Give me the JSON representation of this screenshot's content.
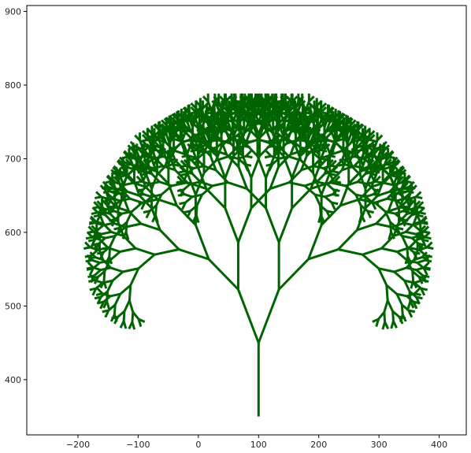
{
  "chart_data": {
    "type": "line",
    "description_kind": "fractal-tree",
    "generator": {
      "trunk_base": [
        100,
        350
      ],
      "trunk_length": 100,
      "branch_angle_deg": 25,
      "length_ratio": 0.8,
      "depth": 10
    },
    "series": [
      {
        "style": "branches",
        "color": "#006400"
      }
    ],
    "xlim": [
      -285,
      445
    ],
    "ylim": [
      325,
      908
    ],
    "xticks": [
      -200,
      -100,
      0,
      100,
      200,
      300,
      400
    ],
    "yticks": [
      400,
      500,
      600,
      700,
      800,
      900
    ],
    "xticklabels": [
      "−200",
      "−100",
      "0",
      "100",
      "200",
      "300",
      "400"
    ],
    "yticklabels": [
      "400",
      "500",
      "600",
      "700",
      "800",
      "900"
    ],
    "grid": false,
    "legend": "none",
    "title": "",
    "xlabel": "",
    "ylabel": ""
  }
}
